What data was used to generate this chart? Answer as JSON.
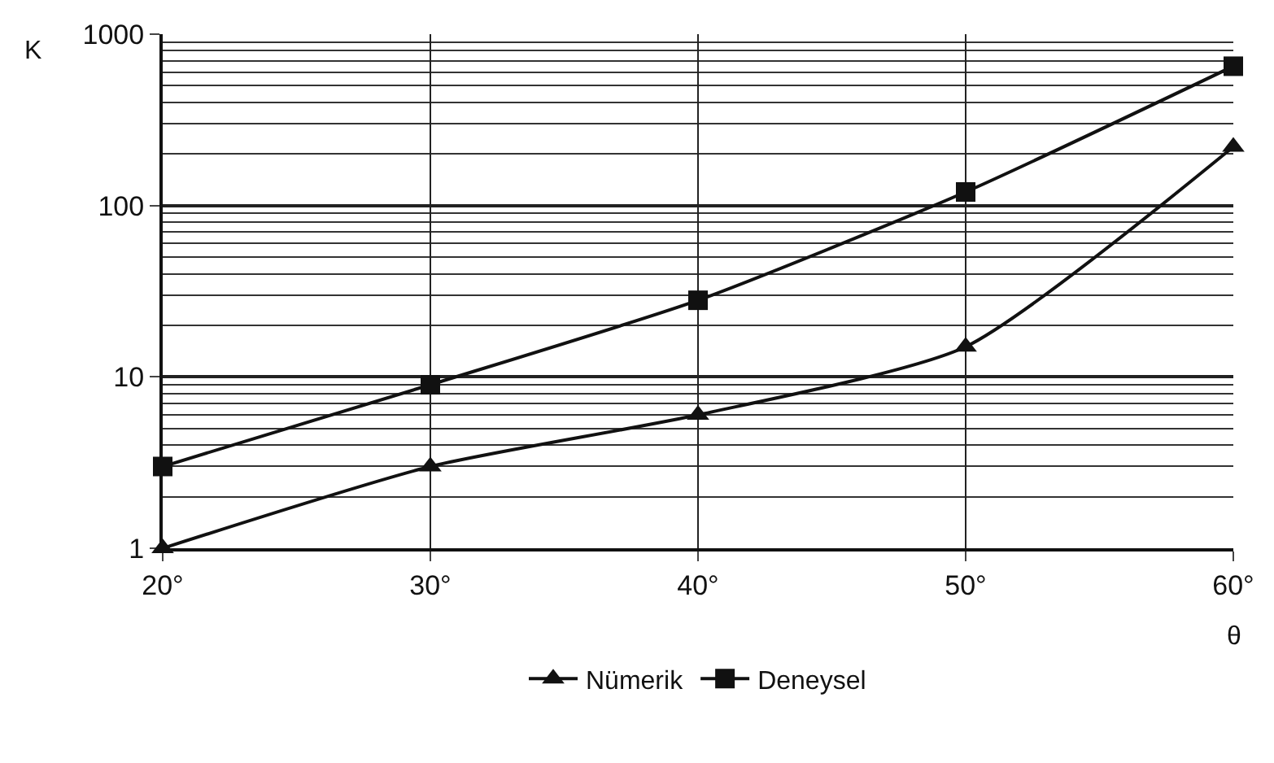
{
  "chart_data": {
    "type": "line",
    "xlabel": "θ",
    "ylabel": "K",
    "x": [
      20,
      30,
      40,
      50,
      60
    ],
    "series": [
      {
        "name": "Nümerik",
        "color": "#111111",
        "marker": "triangle",
        "values": [
          1,
          3,
          6,
          15,
          220
        ]
      },
      {
        "name": "Deneysel",
        "color": "#111111",
        "marker": "square",
        "values": [
          3,
          9,
          28,
          120,
          650
        ]
      }
    ],
    "log": "y",
    "xlim": [
      20,
      60
    ],
    "ylim": [
      1,
      1000
    ],
    "xticks": [
      {
        "value": 20,
        "label": "20°"
      },
      {
        "value": 30,
        "label": "30°"
      },
      {
        "value": 40,
        "label": "40°"
      },
      {
        "value": 50,
        "label": "50°"
      },
      {
        "value": 60,
        "label": "60°"
      }
    ],
    "yticks": [
      1,
      10,
      100,
      1000
    ],
    "grid": true,
    "legend": "bottom"
  }
}
